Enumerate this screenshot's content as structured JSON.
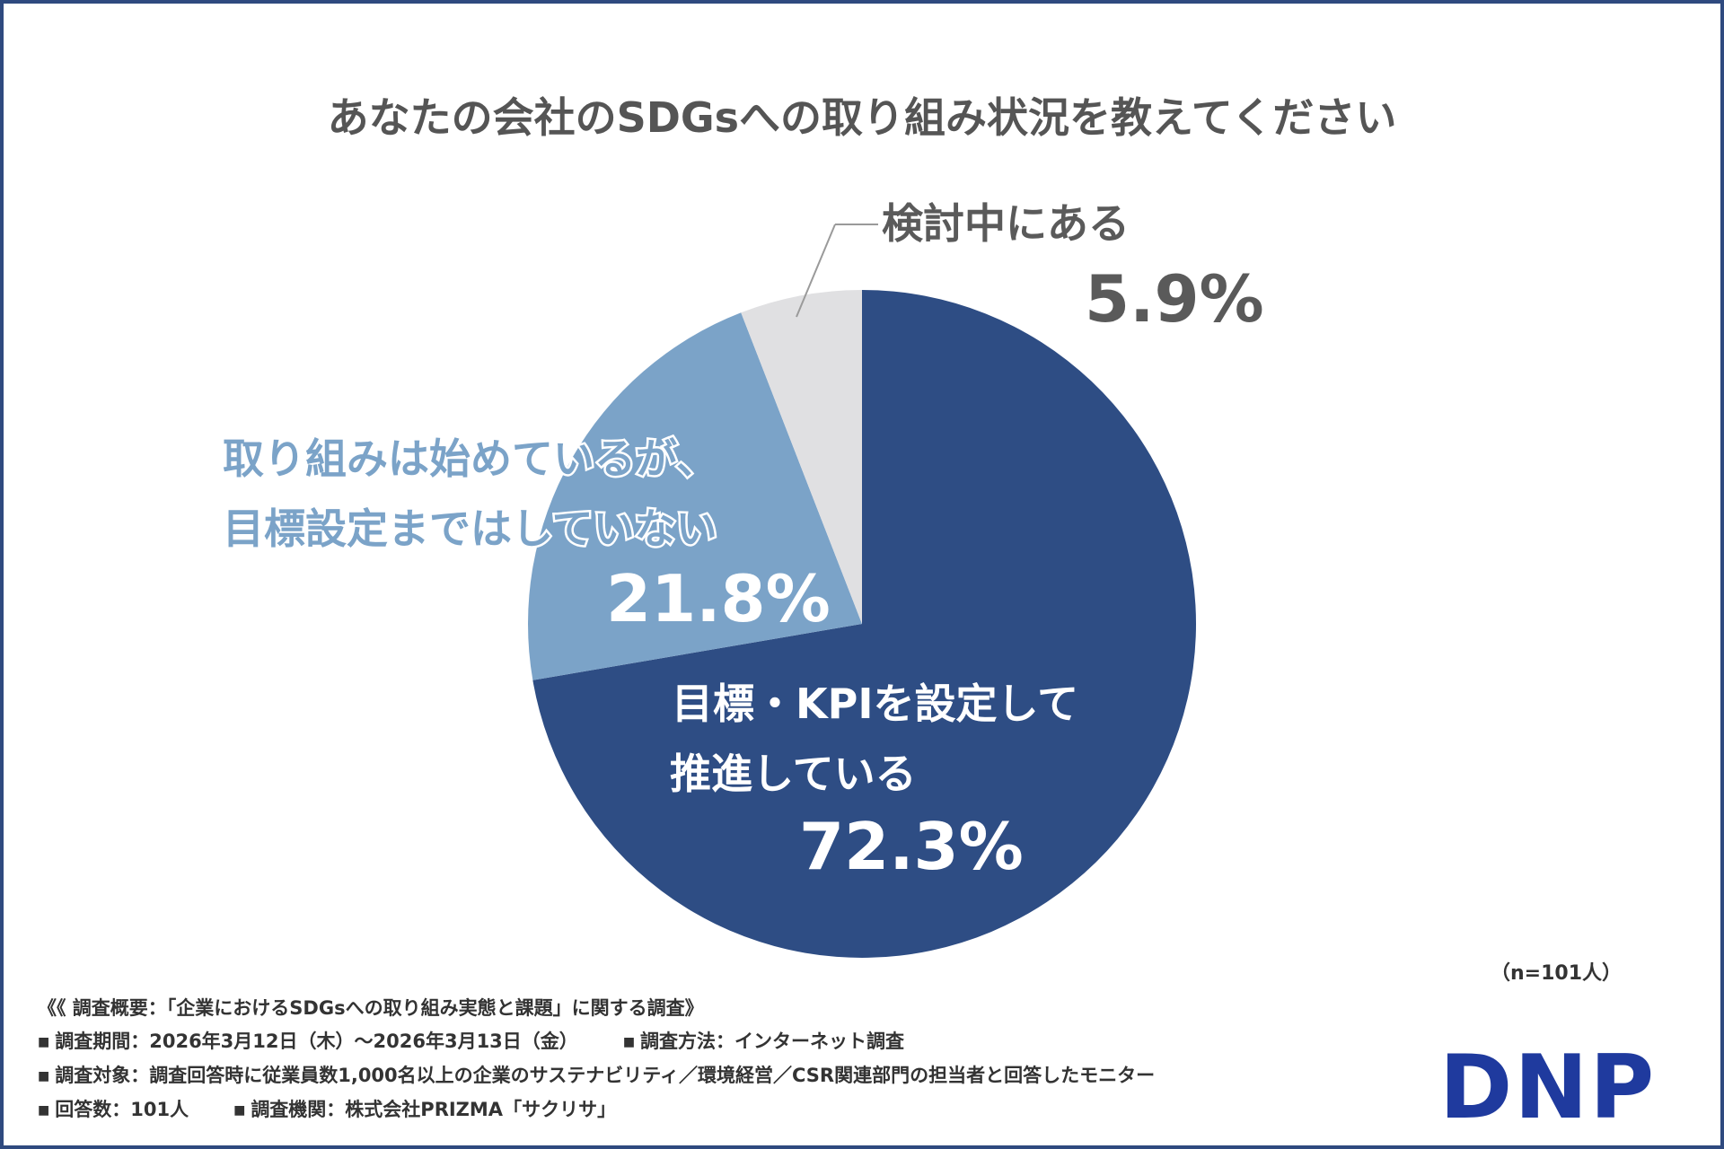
{
  "chart_data": {
    "type": "pie",
    "title": "あなたの会社のSDGsへの取り組み状況を教えてください",
    "slices": [
      {
        "label_lines": [
          "目標・KPIを設定して",
          "推進している"
        ],
        "value": 72.3,
        "value_label": "72.3%",
        "color": "#2e4d84",
        "label_color": "#ffffff"
      },
      {
        "label_lines": [
          "取り組みは始めているが、",
          "目標設定まではしていない"
        ],
        "value": 21.8,
        "value_label": "21.8%",
        "color": "#7ba3c8",
        "label_color": "#7ba3c8"
      },
      {
        "label_lines": [
          "検討中にある"
        ],
        "value": 5.9,
        "value_label": "5.9%",
        "color": "#e0e0e2",
        "label_color": "#5a5a5a"
      }
    ],
    "start": "12 o'clock, clockwise"
  },
  "sample_note": "（n=101人）",
  "footer": {
    "heading": "《《 調査概要：「企業におけるSDGsへの取り組み実態と課題」に関する調査》",
    "period": "調査期間：2026年3月12日（木）～2026年3月13日（金）",
    "method": "調査方法：インターネット調査",
    "target": "調査対象：調査回答時に従業員数1,000名以上の企業のサステナビリティ／環境経営／CSR関連部門の担当者と回答したモニター",
    "respondents": "回答数：101人",
    "organization": "調査機関：株式会社PRIZMA「サクリサ」",
    "bullet": "■"
  },
  "logo": "DNP"
}
